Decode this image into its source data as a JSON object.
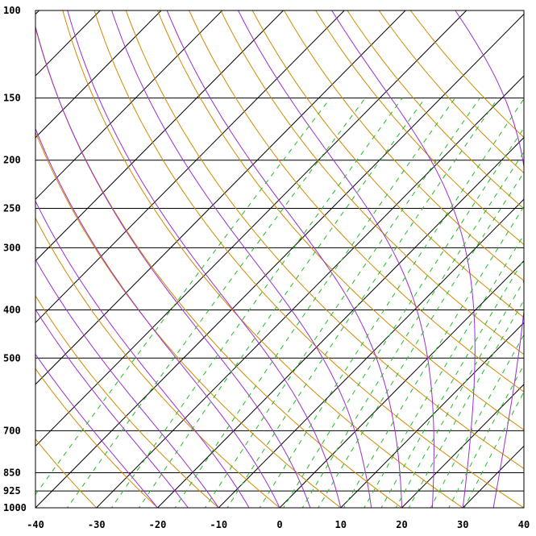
{
  "chart_data": {
    "type": "line",
    "title": "",
    "xlabel": "",
    "ylabel": "",
    "xlim": [
      -40,
      40
    ],
    "ylim": [
      1000,
      100
    ],
    "y_scale": "log",
    "x_ticks": [
      "-40",
      "-30",
      "-20",
      "-10",
      "0",
      "10",
      "20",
      "30",
      "40"
    ],
    "x_tick_values": [
      -40,
      -30,
      -20,
      -10,
      0,
      10,
      20,
      30,
      40
    ],
    "y_ticks": [
      "100",
      "150",
      "200",
      "250",
      "300",
      "400",
      "500",
      "700",
      "850",
      "925",
      "1000"
    ],
    "y_tick_values": [
      100,
      150,
      200,
      250,
      300,
      400,
      500,
      700,
      850,
      925,
      1000
    ],
    "isotherm_step": 10,
    "skew_factor": 35,
    "dry_adiabats": [
      -30,
      -20,
      -10,
      0,
      10,
      20,
      30,
      40,
      50,
      60,
      70,
      80,
      90,
      100,
      110,
      120,
      130,
      140
    ],
    "moist_adiabats": [
      -20,
      -15,
      -10,
      -5,
      0,
      5,
      10,
      15,
      20,
      25,
      30,
      35
    ],
    "mixing_ratios": [
      0.1,
      0.2,
      0.4,
      0.6,
      1,
      1.5,
      2,
      3,
      4,
      5,
      6,
      8,
      10,
      12,
      14,
      16,
      20,
      24,
      28
    ],
    "grid": true,
    "colors": {
      "isobar": "#000000",
      "isotherm": "#000000",
      "dry_adiabat": "#d08a00",
      "moist_adiabat": "#9a2fd0",
      "mixing_ratio": "#22bb22",
      "frame": "#000000"
    }
  }
}
